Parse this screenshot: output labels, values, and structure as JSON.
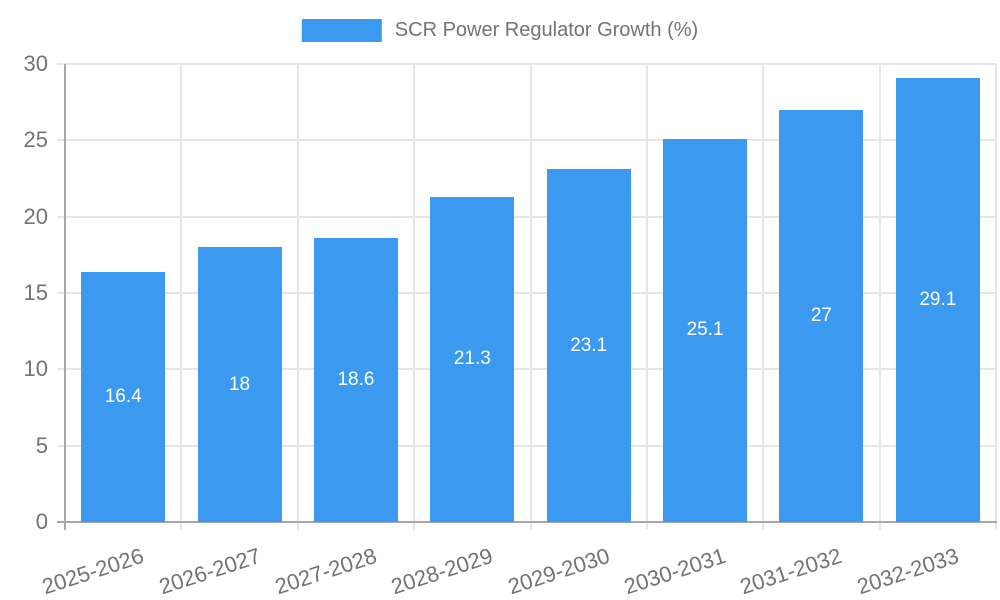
{
  "chart_data": {
    "type": "bar",
    "title": "SCR Power Regulator Growth (%)",
    "legend": [
      "SCR Power Regulator Growth (%)"
    ],
    "legend_position": "top-center",
    "categories": [
      "2025-2026",
      "2026-2027",
      "2027-2028",
      "2028-2029",
      "2029-2030",
      "2030-2031",
      "2031-2032",
      "2032-2033"
    ],
    "values": [
      16.4,
      18,
      18.6,
      21.3,
      23.1,
      25.1,
      27,
      29.1
    ],
    "value_labels": [
      "16.4",
      "18",
      "18.6",
      "21.3",
      "23.1",
      "25.1",
      "27",
      "29.1"
    ],
    "xlabel": "",
    "ylabel": "",
    "ylim": [
      0,
      30
    ],
    "yticks": [
      0,
      5,
      10,
      15,
      20,
      25,
      30
    ],
    "grid": true,
    "x_label_rotation_deg": -18,
    "colors": {
      "bar": "#3B99F0",
      "grid": "#E6E6E6",
      "axis": "#A8A8A8",
      "tick_text": "#737373",
      "value_text": "#FFFFFF",
      "background": "#FFFFFF"
    }
  }
}
